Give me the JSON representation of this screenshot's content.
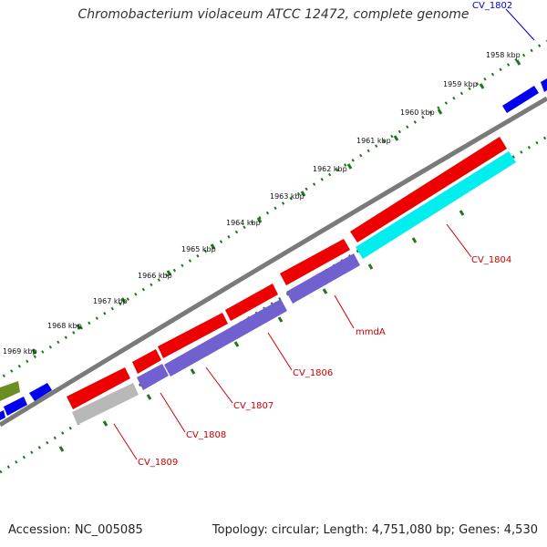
{
  "title": "Chromobacterium violaceum ATCC 12472, complete genome",
  "accession": "Accession: NC_005085",
  "topology": "Topology: circular; Length: 4,751,080 bp; Genes: 4,530",
  "ticks": [
    {
      "label": "1958 kbp"
    },
    {
      "label": "1959 kbp"
    },
    {
      "label": "1960 kbp"
    },
    {
      "label": "1961 kbp"
    },
    {
      "label": "1962 kbp"
    },
    {
      "label": "1963 kbp"
    },
    {
      "label": "1964 kbp"
    },
    {
      "label": "1965 kbp"
    },
    {
      "label": "1966 kbp"
    },
    {
      "label": "1967 kbp"
    },
    {
      "label": "1968 kbp"
    },
    {
      "label": "1969 kbp"
    }
  ],
  "genes": [
    {
      "label": "CV_1802",
      "color": "#0000cc"
    },
    {
      "label": "CV_1804",
      "color": "#cc0000"
    },
    {
      "label": "mmdA",
      "color": "#cc0000"
    },
    {
      "label": "CV_1806",
      "color": "#cc0000"
    },
    {
      "label": "CV_1807",
      "color": "#cc0000"
    },
    {
      "label": "CV_1808",
      "color": "#cc0000"
    },
    {
      "label": "CV_1809",
      "color": "#cc0000"
    }
  ],
  "colors": {
    "forward_cds": "#ee0000",
    "blue_cds": "#0000ee",
    "cyan_feature": "#00eeee",
    "purple_feature": "#7060d0",
    "gray_feature": "#b8b8b8",
    "olive_feature": "#6b8e23",
    "backbone": "#7a7a7a",
    "tick_dots": "#1a7a1a"
  }
}
